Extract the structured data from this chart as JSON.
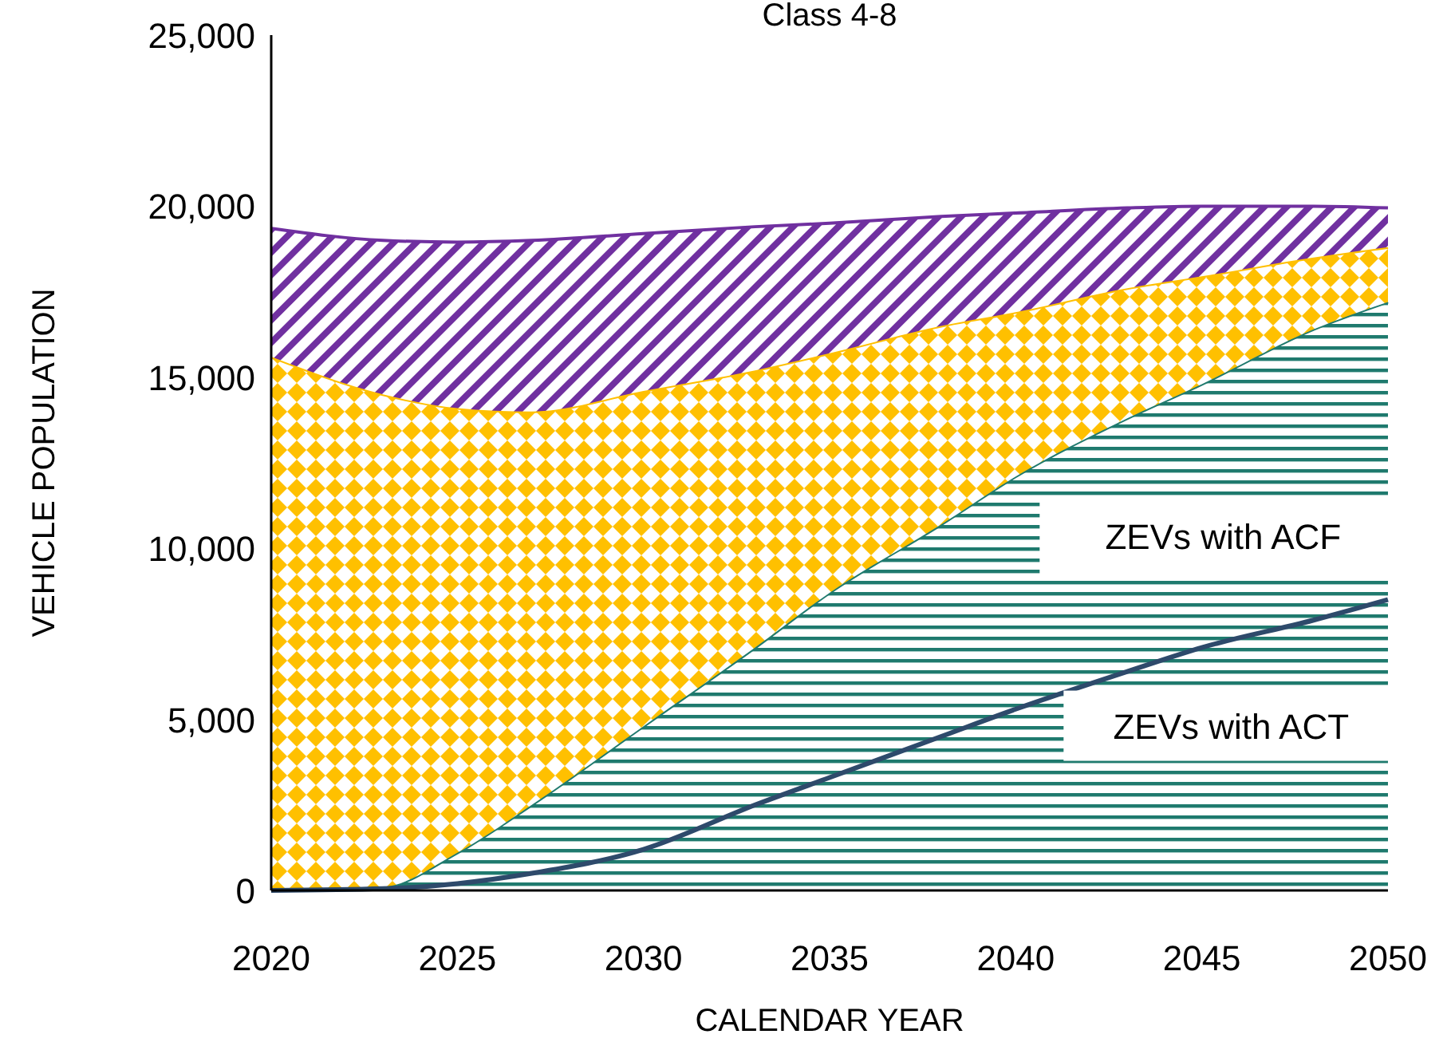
{
  "chart_data": {
    "type": "area",
    "title": "Class 4-8",
    "xlabel": "CALENDAR YEAR",
    "ylabel": "VEHICLE POPULATION",
    "stacked": true,
    "grid": false,
    "x": [
      2020,
      2023,
      2025,
      2027,
      2030,
      2033,
      2035,
      2038,
      2040,
      2043,
      2045,
      2048,
      2050
    ],
    "xlim": [
      2020,
      2050
    ],
    "xticks": [
      2020,
      2025,
      2030,
      2035,
      2040,
      2045,
      2050
    ],
    "ylim": [
      0,
      25000
    ],
    "yticks": [
      {
        "value": 0,
        "label": "0"
      },
      {
        "value": 5000,
        "label": "5,000"
      },
      {
        "value": 10000,
        "label": "10,000"
      },
      {
        "value": 15000,
        "label": "15,000"
      },
      {
        "value": 20000,
        "label": "20,000"
      },
      {
        "value": 25000,
        "label": "25,000"
      }
    ],
    "series": [
      {
        "name": "ZEVs with ACF",
        "color": "#1f7a6e",
        "values": [
          0,
          100,
          1100,
          2500,
          4800,
          7100,
          8700,
          10700,
          12100,
          13800,
          14800,
          16400,
          17200
        ]
      },
      {
        "color": "#ffc000",
        "values": [
          15600,
          14400,
          13000,
          11500,
          9800,
          8100,
          7000,
          5800,
          4800,
          3800,
          3150,
          2100,
          1600
        ]
      },
      {
        "color": "#7030a0",
        "values": [
          3750,
          4500,
          4850,
          5000,
          4600,
          4200,
          3800,
          3200,
          2900,
          2350,
          2050,
          1500,
          1150
        ]
      },
      {
        "name": "ZEVs with ACT",
        "type": "line",
        "color": "#2e4a6b",
        "values": [
          0,
          50,
          200,
          500,
          1200,
          2500,
          3300,
          4500,
          5300,
          6400,
          7100,
          7900,
          8500
        ]
      }
    ]
  }
}
